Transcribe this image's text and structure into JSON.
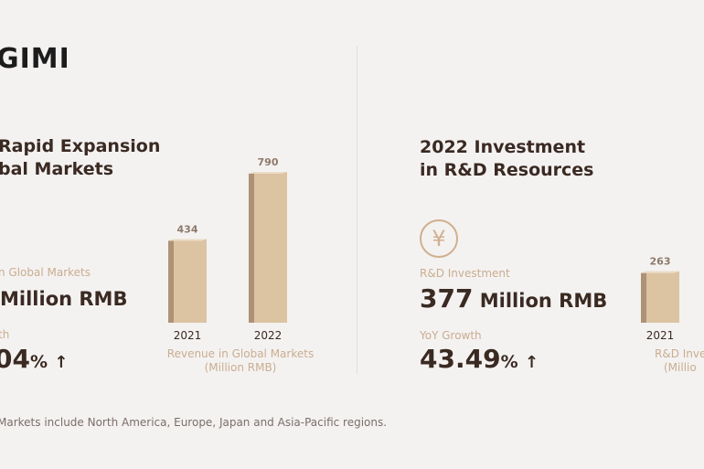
{
  "brand": {
    "logo": "GIMI"
  },
  "left": {
    "title_line1": "Rapid Expansion",
    "title_line2": "bal Markets",
    "metric1_label": "n Global Markets",
    "metric1_value": "Million RMB",
    "metric2_label": "th",
    "metric2_value": "04",
    "metric2_unit": "%",
    "caption_line1": "Revenue in Global Markets",
    "caption_line2": "(Million RMB)"
  },
  "right": {
    "title_line1": "2022 Investment",
    "title_line2": "in R&D Resources",
    "icon": "yen-icon",
    "metric1_label": "R&D Investment",
    "metric1_number": "377",
    "metric1_unit": "Million RMB",
    "metric2_label": "YoY Growth",
    "metric2_number": "43.49",
    "metric2_unit": "%",
    "caption_line1": "R&D Inve",
    "caption_line2": "(Millio"
  },
  "footnote": "Markets include North America, Europe, Japan and Asia-Pacific regions.",
  "colors": {
    "bar_front": "#dcc3a2",
    "bar_side": "#ae9275",
    "bar_top": "#ecdcc6",
    "label": "#c9ad8f",
    "text": "#3a2a22"
  },
  "chart_data": [
    {
      "type": "bar",
      "categories": [
        "2021",
        "2022"
      ],
      "values": [
        434,
        790
      ],
      "xlabel": "Revenue in Global Markets (Million RMB)",
      "ylim": [
        0,
        790
      ]
    },
    {
      "type": "bar",
      "categories": [
        "2021"
      ],
      "values": [
        263
      ],
      "xlabel": "R&D Inve (Millio",
      "ylim": [
        0,
        377
      ]
    }
  ]
}
